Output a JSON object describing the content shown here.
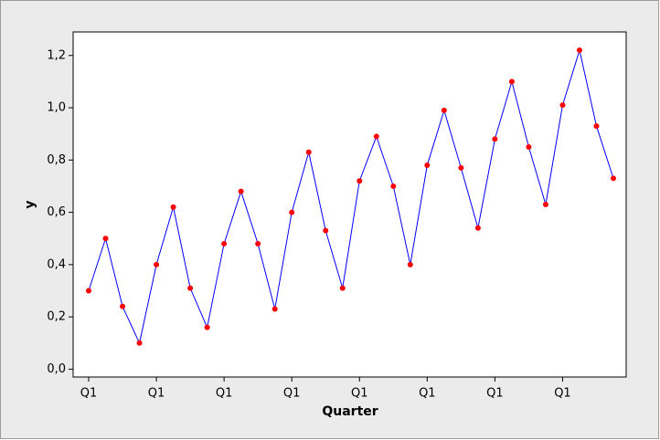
{
  "chart_data": {
    "type": "line",
    "x_label": "Quarter",
    "y_label": "y",
    "categories": [
      "Q1",
      null,
      null,
      null,
      "Q1",
      null,
      null,
      null,
      "Q1",
      null,
      null,
      null,
      "Q1",
      null,
      null,
      null,
      "Q1",
      null,
      null,
      null,
      "Q1",
      null,
      null,
      null,
      "Q1",
      null,
      null,
      null,
      "Q1",
      null,
      null,
      null
    ],
    "series": [
      {
        "name": "y",
        "color": "#0000ff",
        "marker_color": "#ff0000",
        "values": [
          0.3,
          0.5,
          0.24,
          0.1,
          0.4,
          0.62,
          0.31,
          0.16,
          0.48,
          0.68,
          0.48,
          0.23,
          0.6,
          0.83,
          0.53,
          0.31,
          0.72,
          0.89,
          0.7,
          0.4,
          0.78,
          0.99,
          0.77,
          0.54,
          0.88,
          1.1,
          0.85,
          0.63,
          1.01,
          1.22,
          0.93,
          0.73
        ]
      }
    ],
    "ylim": [
      -0.03,
      1.29
    ],
    "yticks": [
      {
        "value": 0,
        "label": "0,0"
      },
      {
        "value": 0.2,
        "label": "0,2"
      },
      {
        "value": 0.4,
        "label": "0,4"
      },
      {
        "value": 0.6,
        "label": "0,6"
      },
      {
        "value": 0.8,
        "label": "0,8"
      },
      {
        "value": 1.0,
        "label": "1,0"
      },
      {
        "value": 1.2,
        "label": "1,2"
      }
    ]
  }
}
